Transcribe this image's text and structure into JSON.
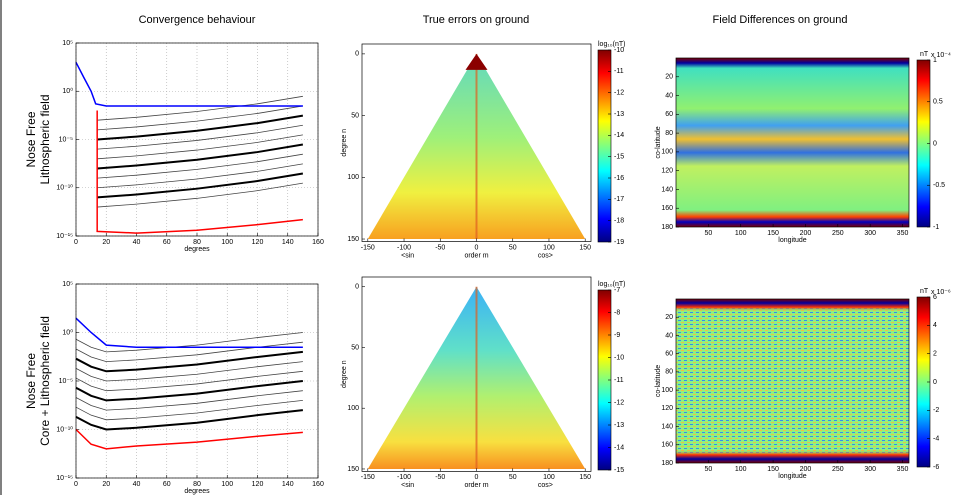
{
  "chart_data": [
    {
      "type": "line",
      "title": "Convergence behaviour",
      "row_label": [
        "Nose Free",
        "Lithospheric field"
      ],
      "xlabel": "degrees",
      "ylog": true,
      "grid": true,
      "xlim": [
        0,
        160
      ],
      "xticks": [
        0,
        20,
        40,
        60,
        80,
        100,
        120,
        140,
        160
      ],
      "ylim": [
        1e-15,
        100000
      ],
      "yticks": [
        {
          "value": 100000,
          "label": "10⁵"
        },
        {
          "value": 1,
          "label": "10⁰"
        },
        {
          "value": 1e-05,
          "label": "10⁻⁵"
        },
        {
          "value": 1e-10,
          "label": "10⁻¹⁰"
        },
        {
          "value": 1e-15,
          "label": "10⁻¹⁵"
        }
      ],
      "x": [
        14,
        40,
        80,
        120,
        150
      ],
      "series": [
        {
          "color": "#444444",
          "line_width": 0.8,
          "values": [
            0.001,
            0.002,
            0.008,
            0.05,
            0.3
          ]
        },
        {
          "color": "#444444",
          "line_width": 0.8,
          "values": [
            0.0001,
            0.0002,
            0.0008,
            0.005,
            0.03
          ]
        },
        {
          "color": "#000000",
          "line_width": 2,
          "values": [
            1e-05,
            2e-05,
            8e-05,
            0.0005,
            0.003
          ]
        },
        {
          "color": "#444444",
          "line_width": 0.8,
          "values": [
            1e-06,
            2e-06,
            8e-06,
            5e-05,
            0.0003
          ]
        },
        {
          "color": "#444444",
          "line_width": 0.8,
          "values": [
            1e-07,
            2e-07,
            8e-07,
            5e-06,
            3e-05
          ]
        },
        {
          "color": "#000000",
          "line_width": 2,
          "values": [
            1e-08,
            2e-08,
            8e-08,
            5e-07,
            3e-06
          ]
        },
        {
          "color": "#444444",
          "line_width": 0.8,
          "values": [
            1e-09,
            2e-09,
            8e-09,
            5e-08,
            3e-07
          ]
        },
        {
          "color": "#444444",
          "line_width": 0.8,
          "values": [
            1e-10,
            2e-10,
            8e-10,
            5e-09,
            3e-08
          ]
        },
        {
          "color": "#000000",
          "line_width": 2,
          "values": [
            1e-11,
            2e-11,
            8e-11,
            5e-10,
            3e-09
          ]
        },
        {
          "color": "#444444",
          "line_width": 0.8,
          "values": [
            1e-12,
            2e-12,
            8e-12,
            5e-11,
            3e-10
          ]
        },
        {
          "color": "#0000ff",
          "line_width": 1.5,
          "x": [
            0,
            5,
            10,
            13,
            20,
            150
          ],
          "values": [
            1000,
            30,
            1,
            0.05,
            0.03,
            0.03
          ]
        },
        {
          "color": "#ff0000",
          "line_width": 1.5,
          "x": [
            14,
            14,
            40,
            80,
            120,
            150
          ],
          "values": [
            0.01,
            3e-15,
            2e-15,
            4e-15,
            1.5e-14,
            5e-14
          ]
        }
      ]
    },
    {
      "type": "heatmap",
      "title": "True errors on ground",
      "shape": "triangle",
      "xlabel": [
        "<sin",
        "order m",
        "cos>"
      ],
      "ylabel": "degree n",
      "xlim": [
        -158,
        158
      ],
      "xticks": [
        -150,
        -100,
        -50,
        0,
        50,
        100,
        150
      ],
      "ylim": [
        -8,
        152
      ],
      "yticks": [
        0,
        50,
        100,
        150
      ],
      "y_inverted": true,
      "colorbar": {
        "label": "log₁₀(nT)",
        "clim": [
          -19,
          -10
        ],
        "ticks": [
          -10,
          -11,
          -12,
          -13,
          -14,
          -15,
          -16,
          -17,
          -18,
          -19
        ]
      }
    },
    {
      "type": "heatmap",
      "title": "Field Differences on ground",
      "shape": "rectangle",
      "xlabel": "longitude",
      "ylabel": "co-latitude",
      "xlim": [
        0,
        360
      ],
      "xticks": [
        50,
        100,
        150,
        200,
        250,
        300,
        350
      ],
      "ylim": [
        0,
        180
      ],
      "yticks": [
        20,
        40,
        60,
        80,
        100,
        120,
        140,
        160,
        180
      ],
      "y_inverted": true,
      "colorbar": {
        "label": "nT",
        "scale_label": "x 10⁻⁴",
        "clim": [
          -1,
          1
        ],
        "ticks": [
          1,
          0.5,
          0,
          -0.5,
          -1
        ]
      }
    },
    {
      "type": "line",
      "row_label": [
        "Nose Free",
        "Core + Lithospheric field"
      ],
      "xlabel": "degrees",
      "ylog": true,
      "grid": true,
      "xlim": [
        0,
        160
      ],
      "xticks": [
        0,
        20,
        40,
        60,
        80,
        100,
        120,
        140,
        160
      ],
      "ylim": [
        1e-15,
        100000
      ],
      "yticks": [
        {
          "value": 100000,
          "label": "10⁵"
        },
        {
          "value": 1,
          "label": "10⁰"
        },
        {
          "value": 1e-05,
          "label": "10⁻⁵"
        },
        {
          "value": 1e-10,
          "label": "10⁻¹⁰"
        },
        {
          "value": 1e-15,
          "label": "10⁻¹⁵"
        }
      ],
      "x": [
        0,
        10,
        20,
        40,
        80,
        120,
        150
      ],
      "series": [
        {
          "color": "#444444",
          "line_width": 0.8,
          "values": [
            0.2,
            0.03,
            0.01,
            0.015,
            0.05,
            0.3,
            1
          ]
        },
        {
          "color": "#444444",
          "line_width": 0.8,
          "values": [
            0.02,
            0.003,
            0.001,
            0.0015,
            0.005,
            0.03,
            0.1
          ]
        },
        {
          "color": "#000000",
          "line_width": 2,
          "values": [
            0.002,
            0.0003,
            0.0001,
            0.00015,
            0.0005,
            0.003,
            0.01
          ]
        },
        {
          "color": "#444444",
          "line_width": 0.8,
          "values": [
            0.0002,
            3e-05,
            1e-05,
            1.5e-05,
            5e-05,
            0.0003,
            0.001
          ]
        },
        {
          "color": "#444444",
          "line_width": 0.8,
          "values": [
            2e-05,
            3e-06,
            1e-06,
            1.5e-06,
            5e-06,
            3e-05,
            0.0001
          ]
        },
        {
          "color": "#000000",
          "line_width": 2,
          "values": [
            2e-06,
            3e-07,
            1e-07,
            1.5e-07,
            5e-07,
            3e-06,
            1e-05
          ]
        },
        {
          "color": "#444444",
          "line_width": 0.8,
          "values": [
            2e-07,
            3e-08,
            1e-08,
            1.5e-08,
            5e-08,
            3e-07,
            1e-06
          ]
        },
        {
          "color": "#444444",
          "line_width": 0.8,
          "values": [
            2e-08,
            3e-09,
            1e-09,
            1.5e-09,
            5e-09,
            3e-08,
            1e-07
          ]
        },
        {
          "color": "#000000",
          "line_width": 2,
          "values": [
            2e-09,
            3e-10,
            1e-10,
            1.5e-10,
            5e-10,
            3e-09,
            1e-08
          ]
        },
        {
          "color": "#0000ff",
          "line_width": 1.5,
          "values": [
            30,
            1,
            0.05,
            0.03,
            0.03,
            0.03,
            0.03
          ]
        },
        {
          "color": "#ff0000",
          "line_width": 1.5,
          "values": [
            1e-10,
            3e-12,
            1e-12,
            2e-12,
            5e-12,
            2e-11,
            5e-11
          ]
        }
      ]
    },
    {
      "type": "heatmap",
      "shape": "triangle",
      "xlabel": [
        "<sin",
        "order m",
        "cos>"
      ],
      "ylabel": "degree n",
      "xlim": [
        -158,
        158
      ],
      "xticks": [
        -150,
        -100,
        -50,
        0,
        50,
        100,
        150
      ],
      "ylim": [
        -8,
        152
      ],
      "yticks": [
        0,
        50,
        100,
        150
      ],
      "y_inverted": true,
      "colorbar": {
        "label": "log₁₀(nT)",
        "clim": [
          -15,
          -7
        ],
        "ticks": [
          -7,
          -8,
          -9,
          -10,
          -11,
          -12,
          -13,
          -14,
          -15
        ]
      }
    },
    {
      "type": "heatmap",
      "shape": "rectangle",
      "xlabel": "longitude",
      "ylabel": "co-latitude",
      "xlim": [
        0,
        360
      ],
      "xticks": [
        50,
        100,
        150,
        200,
        250,
        300,
        350
      ],
      "ylim": [
        0,
        180
      ],
      "yticks": [
        20,
        40,
        60,
        80,
        100,
        120,
        140,
        160,
        180
      ],
      "y_inverted": true,
      "colorbar": {
        "label": "nT",
        "scale_label": "x 10⁻⁶",
        "clim": [
          -6,
          6
        ],
        "ticks": [
          6,
          4,
          2,
          0,
          -2,
          -4,
          -6
        ]
      }
    }
  ]
}
